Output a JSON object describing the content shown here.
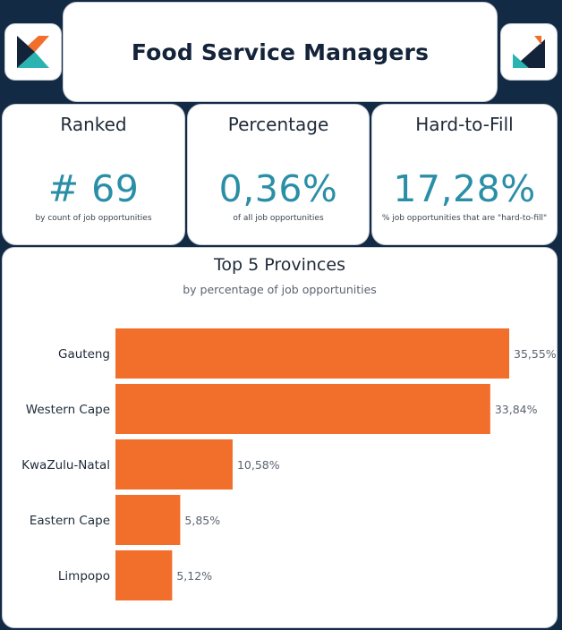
{
  "header": {
    "title": "Food Service Managers"
  },
  "kpis": [
    {
      "label": "Ranked",
      "value": "# 69",
      "sub": "by count of job opportunities"
    },
    {
      "label": "Percentage",
      "value": "0,36%",
      "sub": "of all job opportunities"
    },
    {
      "label": "Hard-to-Fill",
      "value": "17,28%",
      "sub": "% job opportunities that are \"hard-to-fill\""
    }
  ],
  "colors": {
    "bar": "#f26f2b",
    "accent": "#2a8fa6",
    "navy": "#13233a",
    "background": "#132a44"
  },
  "chart_data": {
    "type": "bar",
    "orientation": "horizontal",
    "title": "Top 5 Provinces",
    "subtitle": "by percentage of job opportunities",
    "categories": [
      "Gauteng",
      "Western Cape",
      "KwaZulu-Natal",
      "Eastern Cape",
      "Limpopo"
    ],
    "values": [
      35.55,
      33.84,
      10.58,
      5.85,
      5.12
    ],
    "data_labels": [
      "35,55%",
      "33,84%",
      "10,58%",
      "5,85%",
      "5,12%"
    ],
    "xlim": [
      0,
      35.55
    ],
    "grid": false,
    "legend": "none"
  }
}
